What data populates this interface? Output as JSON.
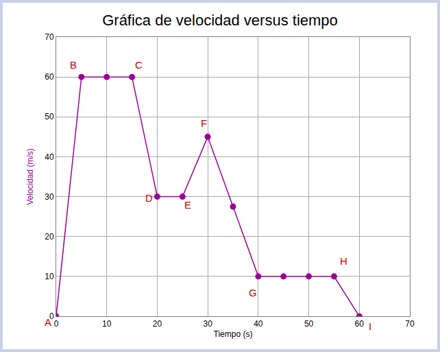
{
  "chart_data": {
    "type": "line",
    "title": "Gráfica de velocidad versus tiempo",
    "x_label": "Tiempo (s)",
    "y_label": "Velocidad (m/s)",
    "x": [
      0,
      5,
      10,
      15,
      20,
      25,
      30,
      35,
      40,
      45,
      50,
      55,
      60
    ],
    "values": [
      0,
      60,
      60,
      60,
      30,
      30,
      45,
      27.5,
      10,
      10,
      10,
      10,
      0
    ],
    "color": "#990099",
    "marker": "circle",
    "xlim": [
      0,
      70
    ],
    "xticks": [
      0,
      10,
      20,
      30,
      40,
      50,
      60,
      70
    ],
    "ylim": [
      0,
      70
    ],
    "yticks": [
      0,
      10,
      20,
      30,
      40,
      50,
      60,
      70
    ],
    "grid": true,
    "annotations": [
      {
        "text": "A",
        "x": 0,
        "y": 0
      },
      {
        "text": "B",
        "x": 5,
        "y": 60
      },
      {
        "text": "C",
        "x": 15,
        "y": 60
      },
      {
        "text": "D",
        "x": 20,
        "y": 30
      },
      {
        "text": "E",
        "x": 25,
        "y": 30
      },
      {
        "text": "F",
        "x": 30,
        "y": 45
      },
      {
        "text": "G",
        "x": 40,
        "y": 10
      },
      {
        "text": "H",
        "x": 55,
        "y": 10
      },
      {
        "text": "I",
        "x": 60,
        "y": 0
      }
    ]
  }
}
